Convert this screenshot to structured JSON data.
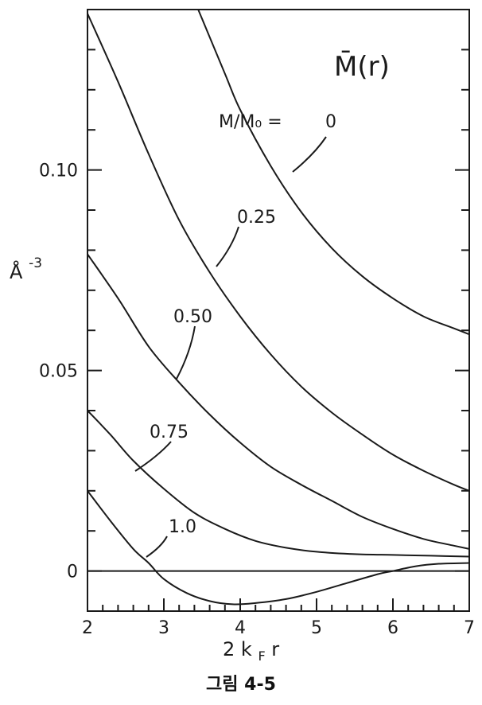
{
  "caption": "그림 4-5",
  "chart_data": {
    "type": "line",
    "title": "M̄(r)",
    "xlabel": "2 k_F r",
    "xlabel_main": "2 k",
    "xlabel_sub": "F",
    "xlabel_tail": " r",
    "ylabel": "Å⁻³",
    "ylabel_main": "Å",
    "ylabel_sup": "-3",
    "xlim": [
      2,
      7
    ],
    "ylim": [
      -0.01,
      0.14
    ],
    "x_ticks": [
      2,
      3,
      4,
      5,
      6,
      7
    ],
    "x_tick_labels": [
      "2",
      "3",
      "4",
      "5",
      "6",
      "7"
    ],
    "y_ticks": [
      0,
      0.05,
      0.1
    ],
    "y_tick_labels": [
      "0",
      "0.05",
      "0.10"
    ],
    "grid": false,
    "legend_title": "M/M₀ =",
    "series": [
      {
        "name": "0",
        "x": [
          3.45,
          3.8,
          4.0,
          4.4,
          4.8,
          5.2,
          5.6,
          6.0,
          6.4,
          6.8,
          7.0
        ],
        "y": [
          0.14,
          0.124,
          0.115,
          0.101,
          0.0895,
          0.0805,
          0.0735,
          0.068,
          0.0635,
          0.0605,
          0.059
        ]
      },
      {
        "name": "0.25",
        "x": [
          2.0,
          2.4,
          2.8,
          3.2,
          3.6,
          4.0,
          4.4,
          4.8,
          5.2,
          5.6,
          6.0,
          6.4,
          6.8,
          7.0
        ],
        "y": [
          0.139,
          0.122,
          0.104,
          0.0875,
          0.0745,
          0.0635,
          0.054,
          0.046,
          0.0395,
          0.034,
          0.029,
          0.025,
          0.0215,
          0.02
        ]
      },
      {
        "name": "0.50",
        "x": [
          2.0,
          2.4,
          2.8,
          3.2,
          3.6,
          4.0,
          4.4,
          4.8,
          5.2,
          5.6,
          6.0,
          6.4,
          6.8,
          7.0
        ],
        "y": [
          0.079,
          0.068,
          0.056,
          0.047,
          0.039,
          0.032,
          0.026,
          0.0215,
          0.0175,
          0.0135,
          0.0105,
          0.008,
          0.0063,
          0.0055
        ]
      },
      {
        "name": "0.75",
        "x": [
          2.0,
          2.3,
          2.6,
          3.0,
          3.4,
          3.8,
          4.2,
          4.6,
          5.0,
          5.5,
          6.0,
          6.5,
          7.0
        ],
        "y": [
          0.04,
          0.034,
          0.0275,
          0.0205,
          0.0145,
          0.0105,
          0.0075,
          0.0058,
          0.0048,
          0.0042,
          0.004,
          0.0038,
          0.0036
        ]
      },
      {
        "name": "1.0",
        "x": [
          2.0,
          2.3,
          2.6,
          2.8,
          3.0,
          3.3,
          3.6,
          3.9,
          4.2,
          4.6,
          5.0,
          5.4,
          5.8,
          6.0,
          6.3,
          6.6,
          7.0
        ],
        "y": [
          0.02,
          0.0125,
          0.0055,
          0.002,
          -0.002,
          -0.0055,
          -0.0075,
          -0.0083,
          -0.008,
          -0.007,
          -0.0052,
          -0.003,
          -0.0008,
          0.0,
          0.0012,
          0.0018,
          0.002
        ]
      }
    ],
    "zero_line": 0,
    "annotations": [
      {
        "text": "0.25",
        "series": "0.25"
      },
      {
        "text": "0.50",
        "series": "0.50"
      },
      {
        "text": "0.75",
        "series": "0.75"
      },
      {
        "text": "1.0",
        "series": "1.0"
      }
    ]
  }
}
